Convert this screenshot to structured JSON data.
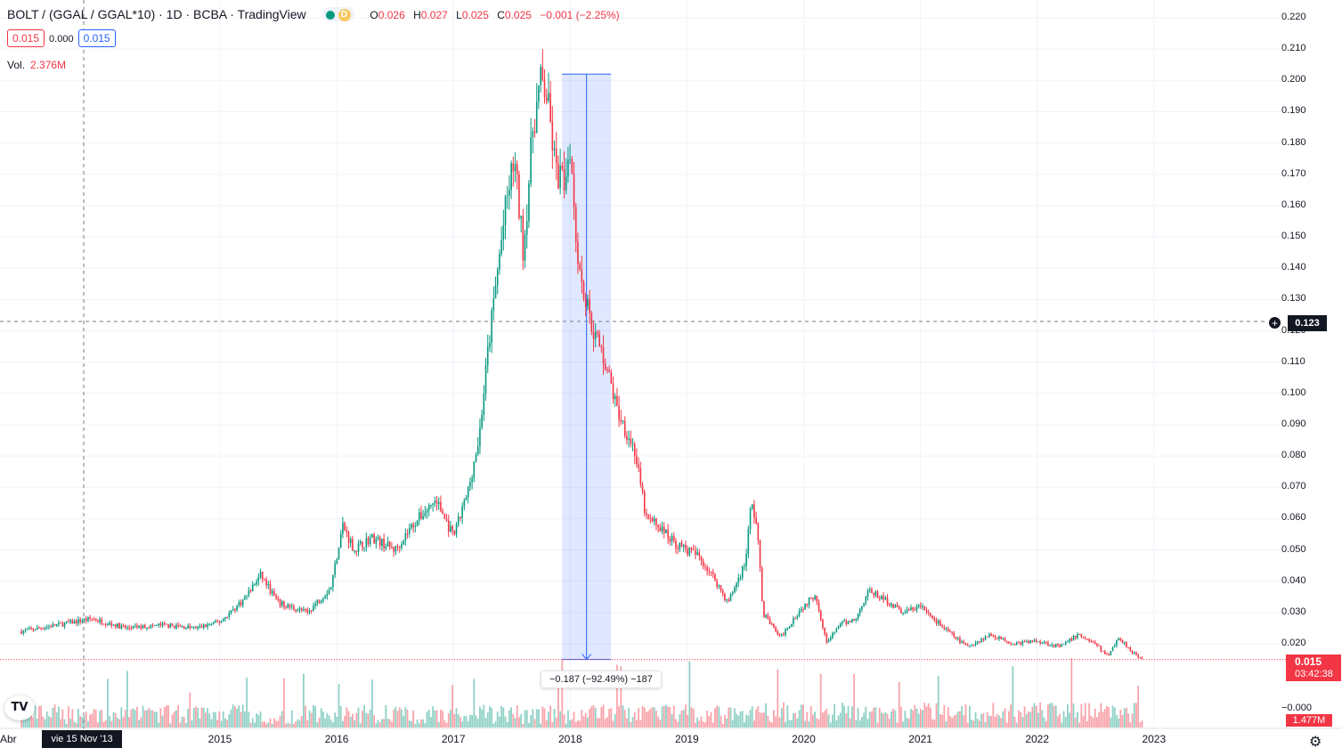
{
  "header": {
    "title": "BOLT / (GGAL / GGAL*10) · 1D · BCBA · TradingView",
    "status_dot_icon": "market-open-dot",
    "delay_badge": "D",
    "ohlc": [
      {
        "key": "O",
        "value": "0.026"
      },
      {
        "key": "H",
        "value": "0.027"
      },
      {
        "key": "L",
        "value": "0.025"
      },
      {
        "key": "C",
        "value": "0.025"
      }
    ],
    "change": "−0.001 (−2.25%)"
  },
  "price_boxes": {
    "sell": "0.015",
    "spread": "0.000",
    "buy": "0.015"
  },
  "volume_legend": {
    "label": "Vol.",
    "value": "2.376M"
  },
  "crosshair": {
    "date_label": "vie 15 Nov '13",
    "price_label": "0.123"
  },
  "last_price": {
    "price": "0.015",
    "countdown": "03:42:38"
  },
  "volume_badge": "1.477M",
  "volume_axis_label": "−0.000",
  "measure": {
    "label": "−0.187 (−92.49%) −187"
  },
  "x_axis_left_label": "Abr",
  "colors": {
    "up": "#089981",
    "down": "#f23645",
    "measure_fill": "#2962ff",
    "accent": "#2962ff"
  },
  "icons": {
    "logo": "tradingview-logo-icon",
    "settings": "gear-icon",
    "add": "plus-circle-icon"
  },
  "chart_data": {
    "type": "candlestick",
    "title": "BOLT / (GGAL / GGAL*10)",
    "interval": "1D",
    "exchange": "BCBA",
    "ylim": [
      0.015,
      0.22
    ],
    "y_ticks": [
      "0.220",
      "0.210",
      "0.200",
      "0.190",
      "0.180",
      "0.170",
      "0.160",
      "0.150",
      "0.140",
      "0.130",
      "0.120",
      "0.110",
      "0.100",
      "0.090",
      "0.080",
      "0.070",
      "0.060",
      "0.050",
      "0.040",
      "0.030",
      "0.020"
    ],
    "x_ticks": [
      "2015",
      "2016",
      "2017",
      "2018",
      "2019",
      "2020",
      "2021",
      "2022",
      "2023"
    ],
    "xlim": [
      2013.3,
      2023.3
    ],
    "series": [
      {
        "name": "price",
        "approx_close_path": [
          [
            2013.3,
            0.024
          ],
          [
            2013.6,
            0.026
          ],
          [
            2013.9,
            0.028
          ],
          [
            2014.2,
            0.025
          ],
          [
            2014.5,
            0.026
          ],
          [
            2014.8,
            0.025
          ],
          [
            2015.0,
            0.027
          ],
          [
            2015.2,
            0.034
          ],
          [
            2015.35,
            0.042
          ],
          [
            2015.5,
            0.033
          ],
          [
            2015.75,
            0.03
          ],
          [
            2015.95,
            0.038
          ],
          [
            2016.05,
            0.058
          ],
          [
            2016.15,
            0.05
          ],
          [
            2016.3,
            0.054
          ],
          [
            2016.5,
            0.05
          ],
          [
            2016.65,
            0.058
          ],
          [
            2016.85,
            0.066
          ],
          [
            2017.0,
            0.054
          ],
          [
            2017.12,
            0.068
          ],
          [
            2017.22,
            0.086
          ],
          [
            2017.3,
            0.115
          ],
          [
            2017.38,
            0.14
          ],
          [
            2017.45,
            0.16
          ],
          [
            2017.52,
            0.175
          ],
          [
            2017.6,
            0.145
          ],
          [
            2017.68,
            0.185
          ],
          [
            2017.75,
            0.2
          ],
          [
            2017.8,
            0.195
          ],
          [
            2017.88,
            0.17
          ],
          [
            2017.95,
            0.168
          ],
          [
            2018.0,
            0.18
          ],
          [
            2018.05,
            0.15
          ],
          [
            2018.1,
            0.135
          ],
          [
            2018.2,
            0.12
          ],
          [
            2018.3,
            0.11
          ],
          [
            2018.4,
            0.095
          ],
          [
            2018.55,
            0.082
          ],
          [
            2018.65,
            0.06
          ],
          [
            2018.75,
            0.058
          ],
          [
            2018.9,
            0.052
          ],
          [
            2019.1,
            0.048
          ],
          [
            2019.25,
            0.04
          ],
          [
            2019.35,
            0.033
          ],
          [
            2019.5,
            0.046
          ],
          [
            2019.55,
            0.065
          ],
          [
            2019.6,
            0.058
          ],
          [
            2019.65,
            0.03
          ],
          [
            2019.8,
            0.022
          ],
          [
            2019.95,
            0.03
          ],
          [
            2020.1,
            0.036
          ],
          [
            2020.2,
            0.02
          ],
          [
            2020.3,
            0.026
          ],
          [
            2020.45,
            0.028
          ],
          [
            2020.55,
            0.037
          ],
          [
            2020.7,
            0.034
          ],
          [
            2020.85,
            0.03
          ],
          [
            2021.0,
            0.032
          ],
          [
            2021.2,
            0.025
          ],
          [
            2021.4,
            0.019
          ],
          [
            2021.6,
            0.023
          ],
          [
            2021.8,
            0.02
          ],
          [
            2022.0,
            0.021
          ],
          [
            2022.2,
            0.019
          ],
          [
            2022.35,
            0.023
          ],
          [
            2022.5,
            0.02
          ],
          [
            2022.6,
            0.016
          ],
          [
            2022.7,
            0.022
          ],
          [
            2022.8,
            0.018
          ],
          [
            2022.9,
            0.015
          ]
        ]
      }
    ],
    "measure_range": {
      "x_start": 2017.93,
      "x_end": 2018.35,
      "y_start": 0.202,
      "y_end": 0.015,
      "change": -0.187,
      "change_pct": -92.49
    },
    "last_price": 0.015,
    "volume_series": "true"
  }
}
